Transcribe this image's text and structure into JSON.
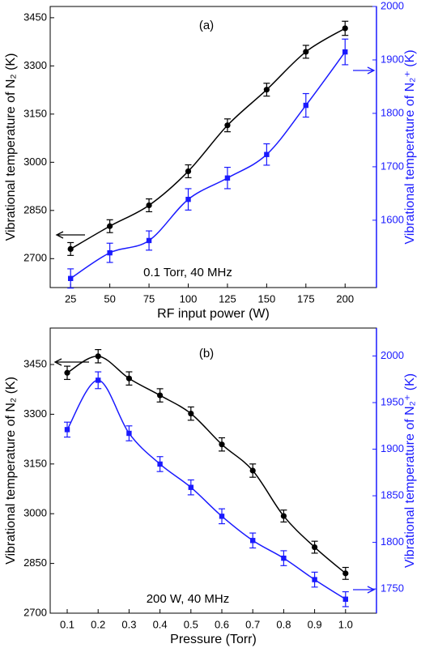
{
  "chart_data": [
    {
      "type": "line",
      "title": "(a)",
      "annotation": "0.1 Torr, 40 MHz",
      "xlabel": "RF input power (W)",
      "ylabel": "Vibrational temperature of N₂ (K)",
      "y2label": "Vibrational temperature of N₂⁺ (K)",
      "x": [
        25,
        50,
        75,
        100,
        125,
        150,
        175,
        200
      ],
      "xlim": [
        12,
        220
      ],
      "xticks": [
        25,
        50,
        75,
        100,
        125,
        150,
        175,
        200
      ],
      "ylim": [
        2610,
        3485
      ],
      "yticks": [
        2700,
        2850,
        3000,
        3150,
        3300,
        3450
      ],
      "y2lim": [
        1474,
        2000
      ],
      "y2ticks": [
        1600,
        1700,
        1800,
        1900,
        2000
      ],
      "y2color": "#1a1aff",
      "series": [
        {
          "color": "#000000",
          "marker": "circle",
          "axis": "y",
          "values": [
            2730,
            2801,
            2866,
            2972,
            3115,
            3226,
            3344,
            3417
          ],
          "errors": [
            20,
            20,
            20,
            20,
            20,
            20,
            20,
            22
          ]
        },
        {
          "color": "#1a1aff",
          "marker": "square",
          "axis": "y2",
          "values": [
            1491,
            1539,
            1562,
            1639,
            1679,
            1723,
            1815,
            1915
          ],
          "errors": [
            18,
            18,
            18,
            20,
            20,
            20,
            22,
            24
          ]
        }
      ]
    },
    {
      "type": "line",
      "title": "(b)",
      "annotation": "200 W, 40 MHz",
      "xlabel": "Pressure (Torr)",
      "ylabel": "Vibrational temperature of N₂ (K)",
      "y2label": "Vibrational temperature of N₂⁺ (K)",
      "x": [
        0.1,
        0.2,
        0.3,
        0.4,
        0.5,
        0.6,
        0.7,
        0.8,
        0.9,
        1.0
      ],
      "xlim": [
        0.045,
        1.1
      ],
      "xticks": [
        0.1,
        0.2,
        0.3,
        0.4,
        0.5,
        0.6,
        0.7,
        0.8,
        0.9,
        {
          "value": 1,
          "label": "1.0"
        }
      ],
      "ylim": [
        2700,
        3560
      ],
      "yticks": [
        2700,
        2850,
        3000,
        3150,
        3300,
        3450
      ],
      "y2lim": [
        1724,
        2030
      ],
      "y2ticks": [
        1750,
        1800,
        1850,
        1900,
        1950,
        2000
      ],
      "y2color": "#1a1aff",
      "series": [
        {
          "color": "#000000",
          "marker": "circle",
          "axis": "y",
          "values": [
            3425,
            3475,
            3408,
            3357,
            3302,
            3209,
            3130,
            2993,
            2899,
            2820
          ],
          "errors": [
            20,
            20,
            20,
            20,
            20,
            20,
            20,
            18,
            18,
            18
          ]
        },
        {
          "color": "#1a1aff",
          "marker": "square",
          "axis": "y2",
          "values": [
            1921,
            1974,
            1917,
            1884,
            1859,
            1828,
            1802,
            1783,
            1760,
            1739
          ],
          "errors": [
            8,
            9,
            8,
            8,
            8,
            8,
            8,
            8,
            8,
            8
          ]
        }
      ]
    }
  ]
}
